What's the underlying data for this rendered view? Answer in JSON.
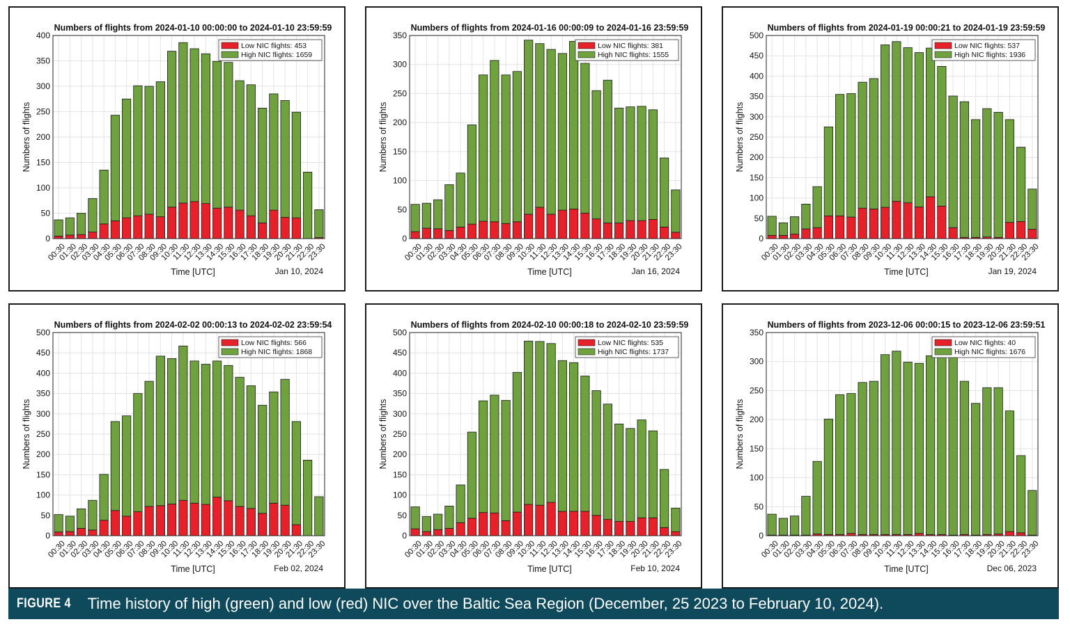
{
  "caption": {
    "label": "FIGURE 4",
    "text": "Time history of high (green) and low (red) NIC over the Baltic Sea Region (December, 25 2023 to February 10, 2024)."
  },
  "colors": {
    "low": "#e8202a",
    "high": "#6fa23f",
    "grid": "#e3e3e3"
  },
  "chart_data": [
    {
      "type": "bar",
      "stacked": true,
      "title": "Numbers of flights from 2024-01-10 00:00:00 to 2024-01-10 23:59:59",
      "xlabel": "Time [UTC]",
      "ylabel": "Numbers of flights",
      "date_label": "Jan 10, 2024",
      "ylim": [
        0,
        400
      ],
      "yticks": [
        0,
        50,
        100,
        150,
        200,
        250,
        300,
        350,
        400
      ],
      "grid": true,
      "legend": {
        "position": "top-right",
        "low": "Low NIC flights: 453",
        "high": "High NIC flights: 1659"
      },
      "categories": [
        "00:30",
        "01:30",
        "02:30",
        "03:30",
        "04:30",
        "05:30",
        "06:30",
        "07:30",
        "08:30",
        "09:30",
        "10:30",
        "11:30",
        "12:30",
        "13:30",
        "14:30",
        "15:30",
        "16:30",
        "17:30",
        "18:30",
        "19:30",
        "20:30",
        "21:30",
        "22:30",
        "23:30"
      ],
      "series": [
        {
          "name": "Low NIC flights",
          "values": [
            5,
            7,
            8,
            13,
            29,
            35,
            41,
            45,
            48,
            43,
            62,
            70,
            73,
            69,
            60,
            62,
            56,
            45,
            31,
            56,
            42,
            41,
            0,
            2
          ]
        },
        {
          "name": "High NIC flights",
          "values": [
            32,
            34,
            42,
            66,
            106,
            208,
            234,
            256,
            252,
            266,
            307,
            316,
            301,
            295,
            289,
            285,
            255,
            258,
            226,
            229,
            230,
            208,
            131,
            55
          ]
        }
      ]
    },
    {
      "type": "bar",
      "stacked": true,
      "title": "Numbers of flights from 2024-01-16 00:00:09 to 2024-01-16 23:59:59",
      "xlabel": "Time [UTC]",
      "ylabel": "Numbers of flights",
      "date_label": "Jan 16, 2024",
      "ylim": [
        0,
        350
      ],
      "yticks": [
        0,
        50,
        100,
        150,
        200,
        250,
        300,
        350
      ],
      "grid": true,
      "legend": {
        "position": "top-right",
        "low": "Low NIC flights: 381",
        "high": "High NIC flights: 1555"
      },
      "categories": [
        "00:30",
        "01:30",
        "02:30",
        "03:30",
        "04:30",
        "05:30",
        "06:30",
        "07:30",
        "08:30",
        "09:30",
        "10:30",
        "11:30",
        "12:30",
        "13:30",
        "14:30",
        "15:30",
        "16:30",
        "17:30",
        "18:30",
        "19:30",
        "20:30",
        "21:30",
        "22:30",
        "23:30"
      ],
      "series": [
        {
          "name": "Low NIC flights",
          "values": [
            12,
            18,
            17,
            14,
            20,
            25,
            30,
            29,
            26,
            29,
            42,
            54,
            42,
            49,
            51,
            44,
            34,
            27,
            27,
            31,
            31,
            33,
            20,
            11
          ]
        },
        {
          "name": "High NIC flights",
          "values": [
            47,
            43,
            50,
            79,
            93,
            171,
            252,
            278,
            256,
            259,
            300,
            282,
            284,
            270,
            289,
            258,
            221,
            246,
            198,
            196,
            197,
            189,
            119,
            73
          ]
        }
      ]
    },
    {
      "type": "bar",
      "stacked": true,
      "title": "Numbers of flights from 2024-01-19 00:00:21 to 2024-01-19 23:59:59",
      "xlabel": "Time [UTC]",
      "ylabel": "Numbers of flights",
      "date_label": "Jan 19, 2024",
      "ylim": [
        0,
        500
      ],
      "yticks": [
        0,
        50,
        100,
        150,
        200,
        250,
        300,
        350,
        400,
        450,
        500
      ],
      "grid": true,
      "legend": {
        "position": "top-right",
        "low": "Low NIC flights: 537",
        "high": "High NIC flights: 1936"
      },
      "categories": [
        "00:30",
        "01:30",
        "02:30",
        "03:30",
        "04:30",
        "05:30",
        "06:30",
        "07:30",
        "08:30",
        "09:30",
        "10:30",
        "11:30",
        "12:30",
        "13:30",
        "14:30",
        "15:30",
        "16:30",
        "17:30",
        "18:30",
        "19:30",
        "20:30",
        "21:30",
        "22:30",
        "23:30"
      ],
      "series": [
        {
          "name": "Low NIC flights",
          "values": [
            8,
            8,
            11,
            24,
            27,
            56,
            56,
            53,
            75,
            73,
            77,
            92,
            88,
            78,
            103,
            80,
            27,
            3,
            3,
            4,
            3,
            40,
            42,
            23
          ]
        },
        {
          "name": "High NIC flights",
          "values": [
            47,
            31,
            43,
            61,
            101,
            219,
            299,
            304,
            310,
            321,
            400,
            393,
            382,
            380,
            366,
            344,
            324,
            334,
            290,
            316,
            308,
            253,
            183,
            99
          ]
        }
      ]
    },
    {
      "type": "bar",
      "stacked": true,
      "title": "Numbers of flights from 2024-02-02 00:00:13 to 2024-02-02 23:59:54",
      "xlabel": "Time [UTC]",
      "ylabel": "Numbers of flights",
      "date_label": "Feb 02, 2024",
      "ylim": [
        0,
        500
      ],
      "yticks": [
        0,
        50,
        100,
        150,
        200,
        250,
        300,
        350,
        400,
        450,
        500
      ],
      "grid": true,
      "legend": {
        "position": "top-right",
        "low": "Low NIC flights: 566",
        "high": "High NIC flights: 1868"
      },
      "categories": [
        "00:30",
        "01:30",
        "02:30",
        "03:30",
        "04:30",
        "05:30",
        "06:30",
        "07:30",
        "08:30",
        "09:30",
        "10:30",
        "11:30",
        "12:30",
        "13:30",
        "14:30",
        "15:30",
        "16:30",
        "17:30",
        "18:30",
        "19:30",
        "20:30",
        "21:30",
        "22:30",
        "23:30"
      ],
      "series": [
        {
          "name": "Low NIC flights",
          "values": [
            9,
            10,
            18,
            14,
            38,
            62,
            48,
            59,
            72,
            74,
            78,
            87,
            80,
            77,
            95,
            86,
            72,
            67,
            55,
            80,
            75,
            27,
            0,
            0
          ]
        },
        {
          "name": "High NIC flights",
          "values": [
            43,
            38,
            48,
            73,
            113,
            219,
            247,
            291,
            308,
            368,
            358,
            380,
            350,
            345,
            335,
            333,
            318,
            302,
            266,
            274,
            310,
            254,
            186,
            96
          ]
        }
      ]
    },
    {
      "type": "bar",
      "stacked": true,
      "title": "Numbers of flights from 2024-02-10 00:00:18 to 2024-02-10 23:59:59",
      "xlabel": "Time [UTC]",
      "ylabel": "Numbers of flights",
      "date_label": "Feb 10, 2024",
      "ylim": [
        0,
        500
      ],
      "yticks": [
        0,
        50,
        100,
        150,
        200,
        250,
        300,
        350,
        400,
        450,
        500
      ],
      "grid": true,
      "legend": {
        "position": "top-right",
        "low": "Low NIC flights: 535",
        "high": "High NIC flights: 1737"
      },
      "categories": [
        "00:30",
        "01:30",
        "02:30",
        "03:30",
        "04:30",
        "05:30",
        "06:30",
        "07:30",
        "08:30",
        "09:30",
        "10:30",
        "11:30",
        "12:30",
        "13:30",
        "14:30",
        "15:30",
        "16:30",
        "17:30",
        "18:30",
        "19:30",
        "20:30",
        "21:30",
        "22:30",
        "23:30"
      ],
      "series": [
        {
          "name": "Low NIC flights",
          "values": [
            17,
            10,
            15,
            18,
            32,
            43,
            57,
            56,
            37,
            58,
            77,
            75,
            82,
            60,
            60,
            60,
            50,
            40,
            35,
            35,
            44,
            44,
            20,
            10
          ]
        },
        {
          "name": "High NIC flights",
          "values": [
            54,
            37,
            38,
            55,
            93,
            212,
            275,
            290,
            296,
            344,
            402,
            403,
            391,
            371,
            366,
            333,
            307,
            284,
            240,
            229,
            241,
            214,
            143,
            58
          ]
        }
      ]
    },
    {
      "type": "bar",
      "stacked": true,
      "title": "Numbers of flights from 2023-12-06 00:00:15 to 2023-12-06 23:59:51",
      "xlabel": "Time [UTC]",
      "ylabel": "Numbers of flights",
      "date_label": "Dec 06, 2023",
      "ylim": [
        0,
        350
      ],
      "yticks": [
        0,
        50,
        100,
        150,
        200,
        250,
        300,
        350
      ],
      "grid": true,
      "legend": {
        "position": "top-right",
        "low": "Low NIC flights: 40",
        "high": "High NIC flights: 1676"
      },
      "categories": [
        "00:30",
        "01:30",
        "02:30",
        "03:30",
        "04:30",
        "05:30",
        "06:30",
        "07:30",
        "08:30",
        "09:30",
        "10:30",
        "11:30",
        "12:30",
        "13:30",
        "14:30",
        "15:30",
        "16:30",
        "17:30",
        "18:30",
        "19:30",
        "20:30",
        "21:30",
        "22:30",
        "23:30"
      ],
      "series": [
        {
          "name": "Low NIC flights",
          "values": [
            1,
            1,
            1,
            1,
            3,
            2,
            2,
            4,
            2,
            2,
            2,
            2,
            2,
            4,
            2,
            2,
            1,
            2,
            1,
            2,
            3,
            7,
            5,
            1
          ]
        },
        {
          "name": "High NIC flights",
          "values": [
            36,
            29,
            33,
            67,
            125,
            199,
            241,
            241,
            262,
            264,
            310,
            316,
            297,
            293,
            308,
            316,
            325,
            264,
            227,
            253,
            252,
            208,
            133,
            77
          ]
        }
      ]
    }
  ]
}
